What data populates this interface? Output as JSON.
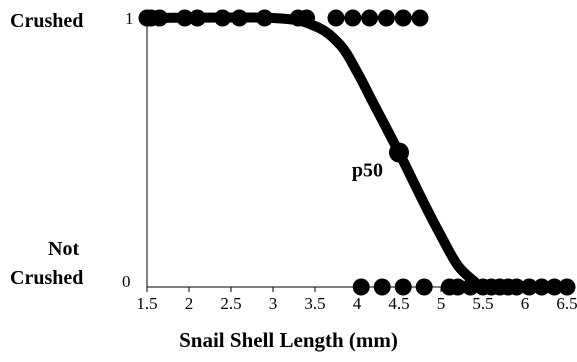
{
  "chart_data": {
    "type": "scatter",
    "xlabel": "Snail Shell Length (mm)",
    "ylabel": "",
    "xlim": [
      1.5,
      6.5
    ],
    "ylim": [
      0,
      1
    ],
    "xticks": [
      "1.5",
      "2",
      "2.5",
      "3",
      "3.5",
      "4",
      "4.5",
      "5",
      "5.5",
      "6",
      "6.5"
    ],
    "yticks": [
      "0",
      "1"
    ],
    "category_labels": {
      "top": "Crushed",
      "bottom_line1": "Not",
      "bottom_line2": "Crushed"
    },
    "annotation": {
      "text": "p50",
      "x": 4.5,
      "y": 0.5
    },
    "crushed_points": [
      1.5,
      1.55,
      1.65,
      1.95,
      2.1,
      2.4,
      2.6,
      2.9,
      3.3,
      3.4,
      3.75,
      3.95,
      4.15,
      4.35,
      4.55,
      4.75
    ],
    "not_crushed_points": [
      4.05,
      4.3,
      4.55,
      4.8,
      5.1,
      5.2,
      5.35,
      5.5,
      5.6,
      5.7,
      5.8,
      5.9,
      6.05,
      6.2,
      6.35,
      6.5
    ],
    "fitted_curve": [
      [
        1.5,
        1.0
      ],
      [
        3.0,
        1.0
      ],
      [
        3.5,
        0.97
      ],
      [
        3.8,
        0.9
      ],
      [
        4.0,
        0.8
      ],
      [
        4.2,
        0.68
      ],
      [
        4.5,
        0.5
      ],
      [
        4.8,
        0.31
      ],
      [
        5.0,
        0.19
      ],
      [
        5.2,
        0.08
      ],
      [
        5.4,
        0.02
      ],
      [
        5.5,
        0.0
      ],
      [
        6.5,
        0.0
      ]
    ]
  }
}
